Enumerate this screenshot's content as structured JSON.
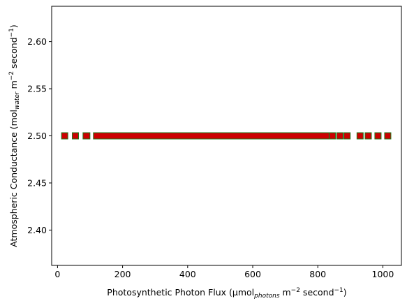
{
  "chart_data": {
    "type": "scatter",
    "xlabel": {
      "prefix": "Photosynthetic Photon Flux (µmol",
      "sub": "photons",
      "mid1": " m",
      "sup1": "−2",
      "mid2": " second",
      "sup2": "−1",
      "suffix": ")"
    },
    "ylabel": {
      "prefix": "Atmospheric Conductance (mol",
      "sub": "water",
      "mid1": " m",
      "sup1": "−2",
      "mid2": " second",
      "sup2": "−1",
      "suffix": ")"
    },
    "xlim": [
      -18,
      1057
    ],
    "ylim": [
      2.3625,
      2.6375
    ],
    "xticks": [
      0,
      200,
      400,
      600,
      800,
      1000
    ],
    "xtick_labels": [
      "0",
      "200",
      "400",
      "600",
      "800",
      "1000"
    ],
    "yticks": [
      2.4,
      2.45,
      2.5,
      2.55,
      2.6
    ],
    "ytick_labels": [
      "2.40",
      "2.45",
      "2.50",
      "2.55",
      "2.60"
    ],
    "grid": false,
    "series": [
      {
        "color": "#1a7a1a",
        "marker": "square",
        "x": [
          22,
          55,
          88,
          90,
          120,
          135,
          150,
          165,
          180,
          195,
          210,
          225,
          240,
          255,
          270,
          285,
          300,
          315,
          330,
          345,
          360,
          375,
          390,
          405,
          420,
          435,
          450,
          465,
          480,
          495,
          510,
          525,
          540,
          555,
          570,
          585,
          600,
          615,
          630,
          645,
          660,
          675,
          690,
          705,
          720,
          735,
          750,
          765,
          780,
          795,
          810,
          825,
          845,
          868,
          890,
          930,
          955,
          985,
          1015
        ],
        "y": 2.5
      },
      {
        "color": "#cc0000",
        "marker": "square",
        "x": [
          22,
          55,
          88,
          90,
          120,
          135,
          150,
          165,
          180,
          195,
          210,
          225,
          240,
          255,
          270,
          285,
          300,
          315,
          330,
          345,
          360,
          375,
          390,
          405,
          420,
          435,
          450,
          465,
          480,
          495,
          510,
          525,
          540,
          555,
          570,
          585,
          600,
          615,
          630,
          645,
          660,
          675,
          690,
          705,
          720,
          735,
          750,
          765,
          780,
          795,
          810,
          825,
          845,
          868,
          890,
          930,
          955,
          985,
          1015
        ],
        "y": 2.5
      }
    ]
  }
}
